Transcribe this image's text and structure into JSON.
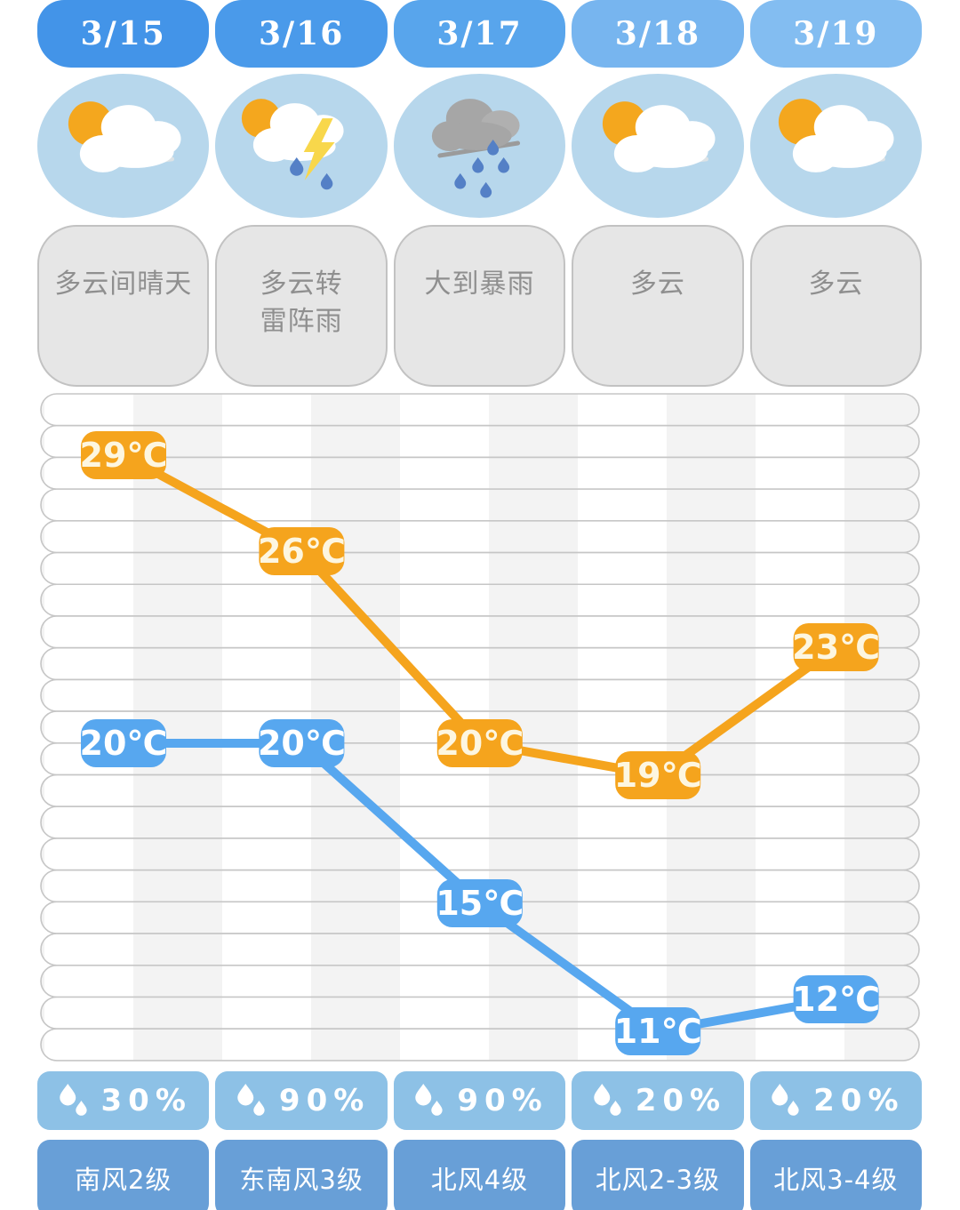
{
  "days": [
    {
      "date": "3/15",
      "tab_color": "#4394E8",
      "icon": "partly-cloudy",
      "description": "多云间晴天",
      "high": 29,
      "low": 20,
      "precipitation": "30%",
      "wind": "南风2级"
    },
    {
      "date": "3/16",
      "tab_color": "#4A9AEA",
      "icon": "thunderstorm",
      "description": "多云转\n雷阵雨",
      "high": 26,
      "low": 20,
      "precipitation": "90%",
      "wind": "东南风3级"
    },
    {
      "date": "3/17",
      "tab_color": "#58A5EC",
      "icon": "heavy-rain",
      "description": "大到暴雨",
      "high": 20,
      "low": 15,
      "precipitation": "90%",
      "wind": "北风4级"
    },
    {
      "date": "3/18",
      "tab_color": "#77B5EF",
      "icon": "cloudy",
      "description": "多云",
      "high": 19,
      "low": 11,
      "precipitation": "20%",
      "wind": "北风2-3级"
    },
    {
      "date": "3/19",
      "tab_color": "#83BDF1",
      "icon": "cloudy",
      "description": "多云",
      "high": 23,
      "low": 12,
      "precipitation": "20%",
      "wind": "北风3-4级"
    }
  ],
  "chart_data": {
    "type": "line",
    "categories": [
      "3/15",
      "3/16",
      "3/17",
      "3/18",
      "3/19"
    ],
    "series": [
      {
        "name": "high",
        "color": "#F5A41D",
        "label_text_color": "#FDF6E0",
        "values": [
          29,
          26,
          20,
          19,
          23
        ]
      },
      {
        "name": "low",
        "color": "#57A7EF",
        "label_text_color": "#FFFFFF",
        "values": [
          20,
          20,
          15,
          11,
          12
        ]
      }
    ],
    "unit": "℃",
    "ylim": [
      10,
      31
    ],
    "grid": "21 horizontal capsule rows, one per degree",
    "legend": "none",
    "point_labels": [
      "29℃",
      "26℃",
      "20℃",
      "19℃",
      "23℃",
      "20℃",
      "20℃",
      "15℃",
      "11℃",
      "12℃"
    ]
  },
  "colors": {
    "icon_circle_bg": "#B7D7EC",
    "bubble_bg": "#E6E6E6",
    "bubble_border": "#C2C2C2",
    "bubble_text": "#8F8F8F",
    "capsule_border": "#C6C6C6",
    "capsule_stripe": "#F3F3F3",
    "precip_card_bg": "#8DC1E6",
    "wind_card_bg": "#689FD7",
    "sun": "#F4A71E",
    "lightning": "#F8D74B",
    "raindrop": "#5480C6",
    "rain_cloud": "#A6A6A6"
  }
}
